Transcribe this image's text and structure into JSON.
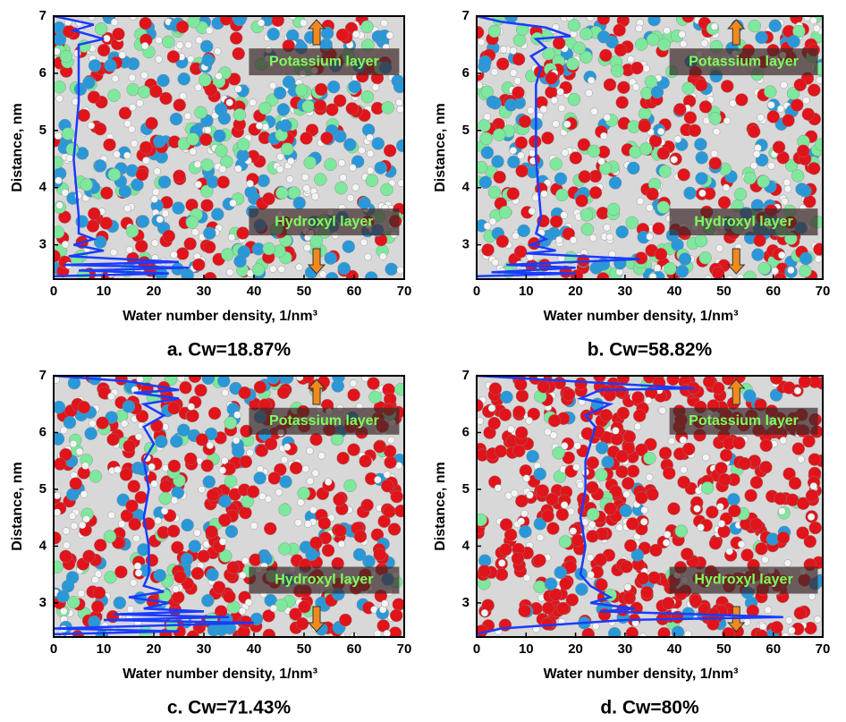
{
  "chart_data": [
    {
      "type": "line",
      "title": "a. Cw=18.87%",
      "xlabel": "Water number density, 1/nm³",
      "ylabel": "Distance, nm",
      "annotations": [
        "Potassium layer",
        "Hydroxyl layer"
      ],
      "color": "#1a3cff",
      "xlim": [
        0,
        70
      ],
      "xticks": [
        0,
        10,
        20,
        30,
        40,
        50,
        60,
        70
      ],
      "ylim": [
        2.4,
        7
      ],
      "yticks": [
        3,
        4,
        5,
        6,
        7
      ],
      "x": [
        0,
        8,
        4,
        10,
        5,
        5,
        4,
        5,
        5,
        8,
        4,
        10,
        3,
        25,
        2,
        27,
        5,
        23,
        0
      ],
      "values": [
        7,
        6.85,
        6.75,
        6.6,
        6.5,
        5.5,
        4.5,
        3.5,
        3.2,
        3.1,
        3.0,
        2.9,
        2.8,
        2.7,
        2.65,
        2.6,
        2.55,
        2.5,
        2.45
      ]
    },
    {
      "type": "line",
      "title": "b. Cw=58.82%",
      "xlabel": "Water number density, 1/nm³",
      "ylabel": "Distance, nm",
      "annotations": [
        "Potassium layer",
        "Hydroxyl layer"
      ],
      "color": "#1a3cff",
      "xlim": [
        0,
        70
      ],
      "xticks": [
        0,
        10,
        20,
        30,
        40,
        50,
        60,
        70
      ],
      "ylim": [
        2.4,
        7
      ],
      "yticks": [
        3,
        4,
        5,
        6,
        7
      ],
      "x": [
        0,
        5,
        14,
        19,
        12,
        14,
        11,
        13,
        12,
        12,
        13,
        12,
        14,
        11,
        16,
        10,
        33,
        6,
        20,
        3,
        20,
        0
      ],
      "values": [
        7,
        6.9,
        6.8,
        6.65,
        6.6,
        6.45,
        6.3,
        6.1,
        5.8,
        4.5,
        3.5,
        3.2,
        3.1,
        3.0,
        2.9,
        2.85,
        2.75,
        2.65,
        2.6,
        2.52,
        2.5,
        2.45
      ]
    },
    {
      "type": "line",
      "title": "c. Cw=71.43%",
      "xlabel": "Water number density, 1/nm³",
      "ylabel": "Distance, nm",
      "annotations": [
        "Potassium layer",
        "Hydroxyl layer"
      ],
      "color": "#1a3cff",
      "xlim": [
        0,
        70
      ],
      "xticks": [
        0,
        10,
        20,
        30,
        40,
        50,
        60,
        70
      ],
      "ylim": [
        2.4,
        7
      ],
      "yticks": [
        3,
        4,
        5,
        6,
        7
      ],
      "x": [
        0,
        15,
        25,
        16,
        25,
        18,
        22,
        18,
        20,
        18,
        19,
        18,
        19,
        19,
        18,
        22,
        15,
        23,
        18,
        30,
        12,
        35,
        10,
        40,
        0,
        25,
        0
      ],
      "values": [
        7,
        6.9,
        6.75,
        6.7,
        6.6,
        6.5,
        6.3,
        6.1,
        5.8,
        5.5,
        5,
        4.5,
        4,
        3.5,
        3.3,
        3.2,
        3.1,
        3.0,
        2.9,
        2.85,
        2.8,
        2.75,
        2.7,
        2.65,
        2.55,
        2.5,
        2.45
      ]
    },
    {
      "type": "line",
      "title": "d. Cw=80%",
      "xlabel": "Water number density, 1/nm³",
      "ylabel": "Distance, nm",
      "annotations": [
        "Potassium layer",
        "Hydroxyl layer"
      ],
      "color": "#1a3cff",
      "xlim": [
        0,
        70
      ],
      "xticks": [
        0,
        10,
        20,
        30,
        40,
        50,
        60,
        70
      ],
      "ylim": [
        2.4,
        7
      ],
      "yticks": [
        3,
        4,
        5,
        6,
        7
      ],
      "x": [
        0,
        20,
        40,
        44,
        25,
        21,
        27,
        22,
        24,
        22,
        22,
        21,
        22,
        21,
        23,
        27,
        23,
        32,
        25,
        45,
        62,
        30,
        5,
        0
      ],
      "values": [
        7,
        6.9,
        6.8,
        6.78,
        6.75,
        6.6,
        6.5,
        6.3,
        6.1,
        5.5,
        5,
        4.5,
        4,
        3.5,
        3.3,
        3.1,
        3.0,
        2.9,
        2.85,
        2.8,
        2.75,
        2.7,
        2.55,
        2.45
      ]
    }
  ]
}
